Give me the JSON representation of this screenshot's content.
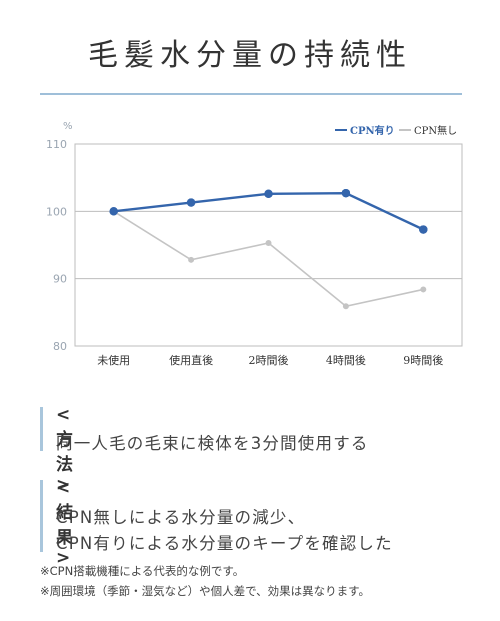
{
  "title": "毛髪水分量の持続性",
  "colors": {
    "series_cpn": "#3465ac",
    "series_no_cpn": "#c4c4c4",
    "rule": "#9fbfd9",
    "accent_bar": "#a9c6dc"
  },
  "chart_data": {
    "type": "line",
    "ylabel": "%",
    "categories": [
      "未使用",
      "使用直後",
      "2時間後",
      "4時間後",
      "9時間後"
    ],
    "ylim": [
      80,
      110
    ],
    "yticks": [
      80,
      90,
      100,
      110
    ],
    "grid": true,
    "legend": "top-right",
    "series": [
      {
        "name": "CPN有り",
        "values": [
          100,
          101.3,
          102.6,
          102.7,
          97.3
        ]
      },
      {
        "name": "CPN無し",
        "values": [
          100,
          92.8,
          95.3,
          85.9,
          88.4
        ]
      }
    ]
  },
  "method": {
    "heading": "<方法>",
    "text": "同一人毛の毛束に検体を3分間使用する"
  },
  "result": {
    "heading": "<結果>",
    "lines": [
      "CPN無しによる水分量の減少、",
      "CPN有りによる水分量のキープを確認した"
    ]
  },
  "notes": [
    "※CPN搭載機種による代表的な例です。",
    "※周囲環境（季節・湿気など）や個人差で、効果は異なります。"
  ]
}
